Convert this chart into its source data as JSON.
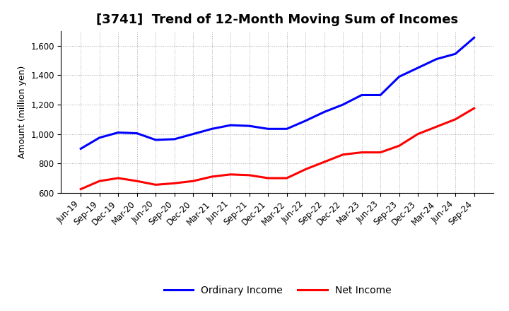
{
  "title": "[3741]  Trend of 12-Month Moving Sum of Incomes",
  "ylabel": "Amount (million yen)",
  "xlabels": [
    "Jun-19",
    "Sep-19",
    "Dec-19",
    "Mar-20",
    "Jun-20",
    "Sep-20",
    "Dec-20",
    "Mar-21",
    "Jun-21",
    "Sep-21",
    "Dec-21",
    "Mar-22",
    "Jun-22",
    "Sep-22",
    "Dec-22",
    "Mar-23",
    "Jun-23",
    "Sep-23",
    "Dec-23",
    "Mar-24",
    "Jun-24",
    "Sep-24"
  ],
  "ordinary_income": [
    900,
    975,
    1010,
    1005,
    960,
    965,
    1000,
    1035,
    1060,
    1055,
    1035,
    1035,
    1090,
    1150,
    1200,
    1265,
    1265,
    1390,
    1450,
    1510,
    1545,
    1655
  ],
  "net_income": [
    625,
    680,
    700,
    680,
    655,
    665,
    680,
    710,
    725,
    720,
    700,
    700,
    760,
    810,
    860,
    875,
    875,
    920,
    1000,
    1050,
    1100,
    1175
  ],
  "ordinary_color": "#0000ff",
  "net_color": "#ff0000",
  "ylim": [
    600,
    1700
  ],
  "yticks": [
    600,
    800,
    1000,
    1200,
    1400,
    1600
  ],
  "background_color": "#ffffff",
  "grid_color": "#aaaaaa",
  "line_width": 2.2,
  "legend_ordinary": "Ordinary Income",
  "legend_net": "Net Income",
  "title_fontsize": 13,
  "label_fontsize": 9,
  "tick_fontsize": 8.5,
  "xlabel_rotation": 45
}
